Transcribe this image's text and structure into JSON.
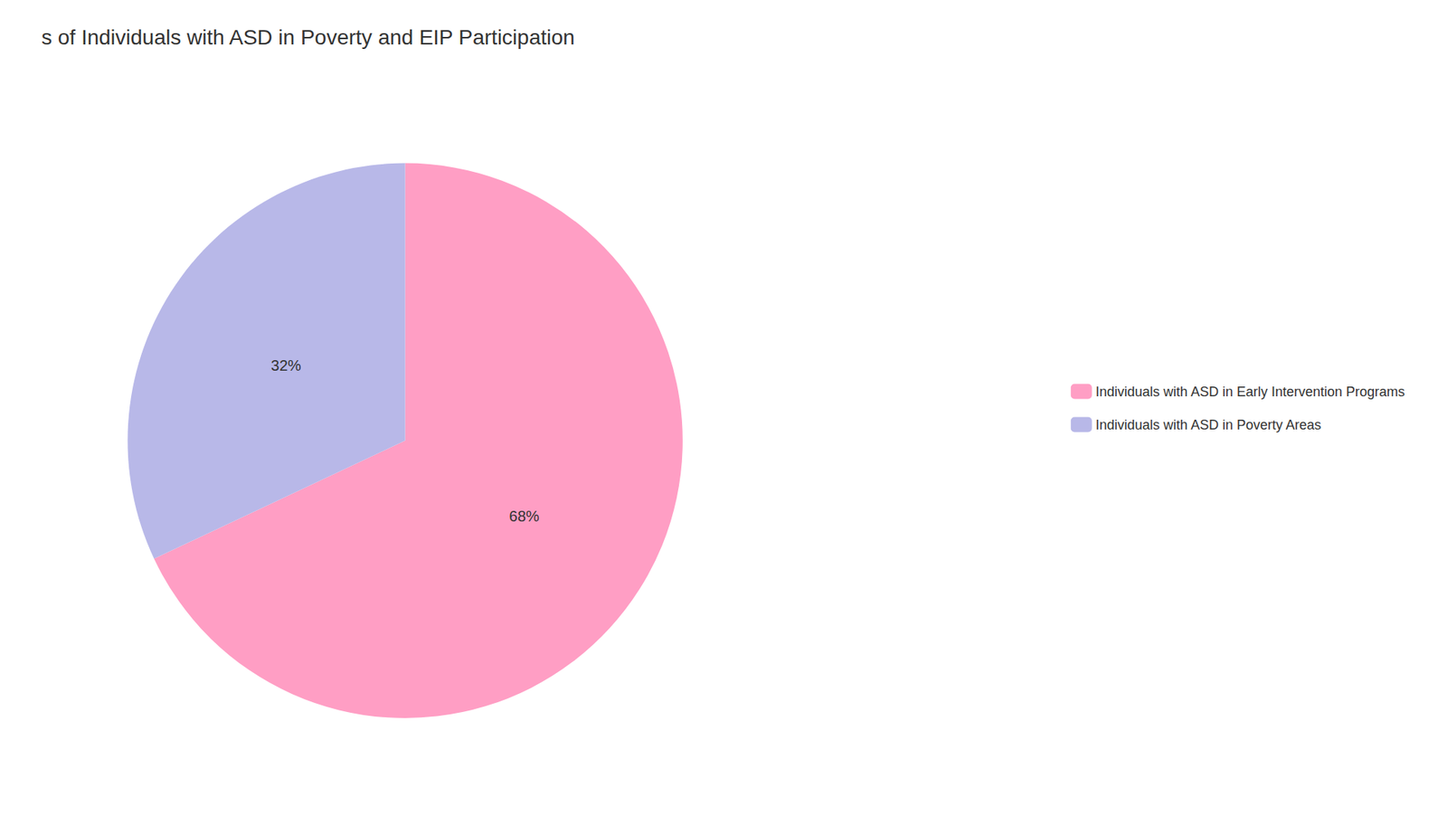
{
  "chart_data": {
    "type": "pie",
    "title": "s of Individuals with ASD in Poverty and EIP Participation",
    "categories": [
      "Individuals with ASD in Early Intervention Programs",
      "Individuals with ASD in Poverty Areas"
    ],
    "values": [
      68,
      32
    ],
    "value_labels": [
      "68%",
      "32%"
    ],
    "colors": [
      "#FF9EC4",
      "#B8B8E8"
    ],
    "data_labels": true,
    "legend": "right"
  }
}
